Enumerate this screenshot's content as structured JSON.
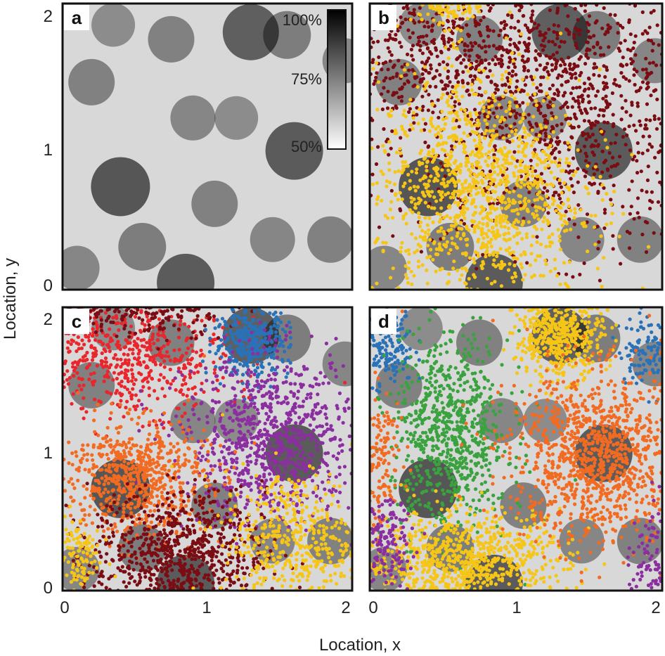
{
  "chart_data": {
    "type": "scatter",
    "x_axis_label": "Location, x",
    "y_axis_label": "Location, y",
    "xlim": [
      0,
      2
    ],
    "ylim": [
      0,
      2
    ],
    "x_ticks": [
      "0",
      "1",
      "2"
    ],
    "y_ticks": [
      "0",
      "1",
      "2"
    ],
    "background_map": {
      "kind": "grayscale heatmap",
      "colorbar_range": [
        50,
        100
      ],
      "colorbar_ticks": [
        "100%",
        "75%",
        "50%"
      ],
      "dark_spots": [
        {
          "x": 0.4,
          "y": 0.72,
          "level": 1.0
        },
        {
          "x": 0.85,
          "y": 0.05,
          "level": 0.95
        },
        {
          "x": 1.3,
          "y": 1.8,
          "level": 0.9
        },
        {
          "x": 1.6,
          "y": 0.97,
          "level": 0.95
        },
        {
          "x": 1.55,
          "y": 1.78,
          "level": 0.6
        },
        {
          "x": 0.55,
          "y": 0.3,
          "level": 0.6
        },
        {
          "x": 0.2,
          "y": 1.45,
          "level": 0.55
        },
        {
          "x": 1.05,
          "y": 0.6,
          "level": 0.55
        },
        {
          "x": 1.85,
          "y": 0.35,
          "level": 0.55
        },
        {
          "x": 0.9,
          "y": 1.2,
          "level": 0.5
        },
        {
          "x": 0.1,
          "y": 0.15,
          "level": 0.5
        },
        {
          "x": 1.95,
          "y": 1.6,
          "level": 0.5
        },
        {
          "x": 0.75,
          "y": 1.75,
          "level": 0.55
        },
        {
          "x": 1.2,
          "y": 1.2,
          "level": 0.45
        },
        {
          "x": 0.35,
          "y": 1.85,
          "level": 0.45
        },
        {
          "x": 1.45,
          "y": 0.35,
          "level": 0.5
        }
      ]
    },
    "panels": [
      {
        "label": "a",
        "shows_colorbar": true,
        "clusters": []
      },
      {
        "label": "b",
        "shows_colorbar": false,
        "clusters": [
          {
            "color": "#7a0d13",
            "cx": 1.35,
            "cy": 1.3,
            "sx": 0.6,
            "sy": 0.5,
            "n": 1300
          },
          {
            "color": "#7a0d13",
            "cx": 0.35,
            "cy": 1.7,
            "sx": 0.4,
            "sy": 0.3,
            "n": 500
          },
          {
            "color": "#f5c518",
            "cx": 0.75,
            "cy": 0.7,
            "sx": 0.35,
            "sy": 0.4,
            "n": 1300
          },
          {
            "color": "#f5c518",
            "cx": 0.55,
            "cy": 2.0,
            "sx": 0.15,
            "sy": 0.08,
            "n": 150
          }
        ]
      },
      {
        "label": "c",
        "shows_colorbar": false,
        "clusters": [
          {
            "color": "#e8262c",
            "cx": 0.45,
            "cy": 1.65,
            "sx": 0.35,
            "sy": 0.2,
            "n": 600
          },
          {
            "color": "#7a0d13",
            "cx": 0.6,
            "cy": 2.0,
            "sx": 0.3,
            "sy": 0.1,
            "n": 250
          },
          {
            "color": "#2a72b8",
            "cx": 1.3,
            "cy": 1.75,
            "sx": 0.13,
            "sy": 0.12,
            "n": 350
          },
          {
            "color": "#8b2fa0",
            "cx": 1.45,
            "cy": 1.05,
            "sx": 0.3,
            "sy": 0.3,
            "n": 900
          },
          {
            "color": "#f26b22",
            "cx": 0.5,
            "cy": 0.8,
            "sx": 0.25,
            "sy": 0.2,
            "n": 700
          },
          {
            "color": "#7a0d13",
            "cx": 0.8,
            "cy": 0.25,
            "sx": 0.3,
            "sy": 0.22,
            "n": 800
          },
          {
            "color": "#f5c518",
            "cx": 1.6,
            "cy": 0.35,
            "sx": 0.25,
            "sy": 0.25,
            "n": 500
          },
          {
            "color": "#f5c518",
            "cx": 0.1,
            "cy": 0.25,
            "sx": 0.08,
            "sy": 0.15,
            "n": 120
          }
        ]
      },
      {
        "label": "d",
        "shows_colorbar": false,
        "clusters": [
          {
            "color": "#2a72b8",
            "cx": 0.1,
            "cy": 1.75,
            "sx": 0.1,
            "sy": 0.15,
            "n": 200
          },
          {
            "color": "#2a72b8",
            "cx": 1.9,
            "cy": 1.7,
            "sx": 0.1,
            "sy": 0.12,
            "n": 120
          },
          {
            "color": "#3aa23f",
            "cx": 0.55,
            "cy": 1.1,
            "sx": 0.2,
            "sy": 0.35,
            "n": 800
          },
          {
            "color": "#f5c518",
            "cx": 1.3,
            "cy": 1.8,
            "sx": 0.15,
            "sy": 0.15,
            "n": 500
          },
          {
            "color": "#f5c518",
            "cx": 0.65,
            "cy": 0.2,
            "sx": 0.35,
            "sy": 0.18,
            "n": 900
          },
          {
            "color": "#f26b22",
            "cx": 1.55,
            "cy": 0.95,
            "sx": 0.3,
            "sy": 0.3,
            "n": 1100
          },
          {
            "color": "#f26b22",
            "cx": 0.07,
            "cy": 0.9,
            "sx": 0.08,
            "sy": 0.25,
            "n": 150
          },
          {
            "color": "#8b2fa0",
            "cx": 0.1,
            "cy": 0.35,
            "sx": 0.1,
            "sy": 0.15,
            "n": 150
          },
          {
            "color": "#8b2fa0",
            "cx": 1.95,
            "cy": 0.25,
            "sx": 0.08,
            "sy": 0.2,
            "n": 120
          }
        ]
      }
    ]
  }
}
